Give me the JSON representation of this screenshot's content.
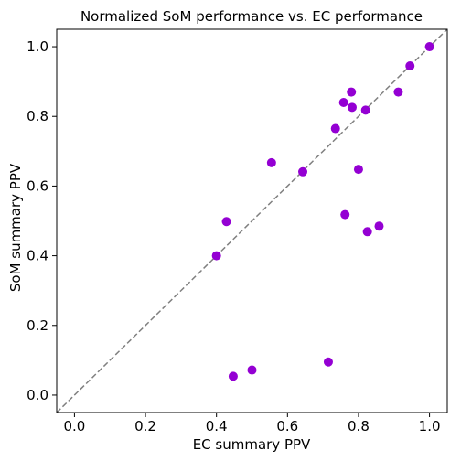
{
  "chart_data": {
    "type": "scatter",
    "title": "Normalized SoM performance vs. EC performance",
    "xlabel": "EC summary PPV",
    "ylabel": "SoM summary PPV",
    "xlim": [
      -0.05,
      1.05
    ],
    "ylim": [
      -0.05,
      1.05
    ],
    "xticks": [
      "0.0",
      "0.2",
      "0.4",
      "0.6",
      "0.8",
      "1.0"
    ],
    "yticks": [
      "0.0",
      "0.2",
      "0.4",
      "0.6",
      "0.8",
      "1.0"
    ],
    "grid": false,
    "reference_line": "y = x (dashed, gray)",
    "point_color": "#9400D3",
    "line_color": "#808080",
    "points": [
      {
        "x": 1.0,
        "y": 1.0
      },
      {
        "x": 0.945,
        "y": 0.945
      },
      {
        "x": 0.912,
        "y": 0.87
      },
      {
        "x": 0.78,
        "y": 0.87
      },
      {
        "x": 0.758,
        "y": 0.84
      },
      {
        "x": 0.782,
        "y": 0.826
      },
      {
        "x": 0.82,
        "y": 0.818
      },
      {
        "x": 0.735,
        "y": 0.765
      },
      {
        "x": 0.555,
        "y": 0.667
      },
      {
        "x": 0.643,
        "y": 0.641
      },
      {
        "x": 0.8,
        "y": 0.648
      },
      {
        "x": 0.762,
        "y": 0.518
      },
      {
        "x": 0.858,
        "y": 0.485
      },
      {
        "x": 0.825,
        "y": 0.469
      },
      {
        "x": 0.428,
        "y": 0.498
      },
      {
        "x": 0.4,
        "y": 0.4
      },
      {
        "x": 0.715,
        "y": 0.095
      },
      {
        "x": 0.5,
        "y": 0.072
      },
      {
        "x": 0.447,
        "y": 0.054
      }
    ]
  }
}
